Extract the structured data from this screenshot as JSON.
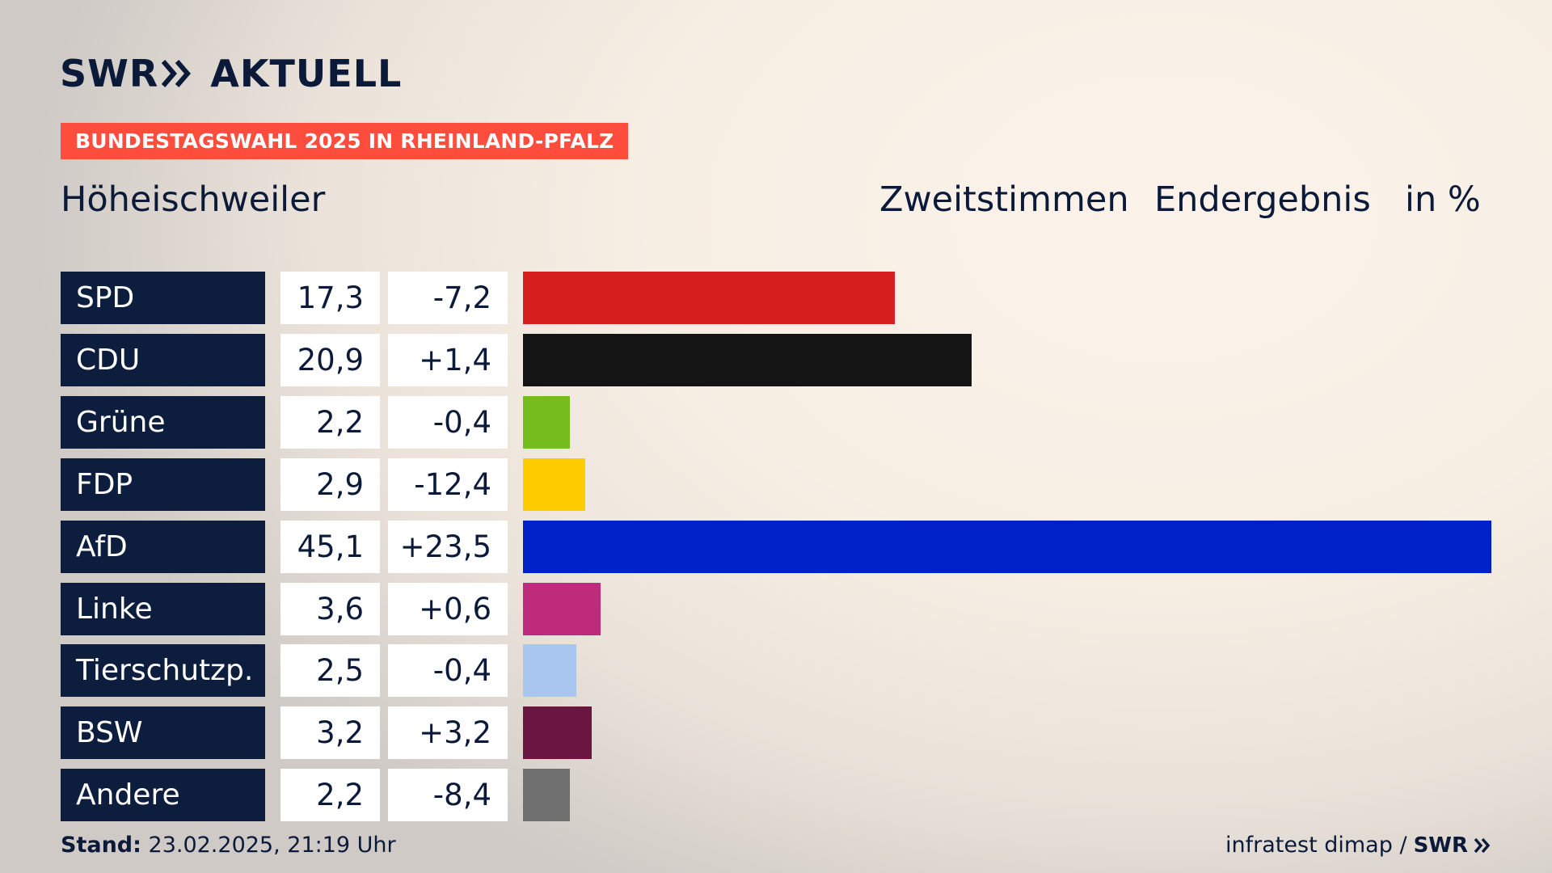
{
  "brand": {
    "swr": "SWR",
    "aktuell": "AKTUELL",
    "logo_icon": "double-chevron-icon"
  },
  "badge": "BUNDESTAGSWAHL 2025 IN RHEINLAND-PFALZ",
  "place": "Höheischweiler",
  "headers": {
    "vote": "Zweitstimmen",
    "result": "Endergebnis",
    "unit": "in %"
  },
  "colors": {
    "navy": "#0c1d3d",
    "badge": "#ff4d3d"
  },
  "chart_data": {
    "type": "bar",
    "orientation": "horizontal",
    "xlim": [
      0,
      45.1
    ],
    "categories": [
      "SPD",
      "CDU",
      "Grüne",
      "FDP",
      "AfD",
      "Linke",
      "Tierschutzp.",
      "BSW",
      "Andere"
    ],
    "values": [
      17.3,
      20.9,
      2.2,
      2.9,
      45.1,
      3.6,
      2.5,
      3.2,
      2.2
    ],
    "value_labels": [
      "17,3",
      "20,9",
      "2,2",
      "2,9",
      "45,1",
      "3,6",
      "2,5",
      "3,2",
      "2,2"
    ],
    "diff_labels": [
      "-7,2",
      "+1,4",
      "-0,4",
      "-12,4",
      "+23,5",
      "+0,6",
      "-0,4",
      "+3,2",
      "-8,4"
    ],
    "colors": [
      "#d71f1f",
      "#141414",
      "#74bd1c",
      "#ffcc00",
      "#0021c8",
      "#bd2b7a",
      "#a9c7ee",
      "#6a1640",
      "#707070"
    ]
  },
  "footer": {
    "stand_label": "Stand:",
    "stand_value": "23.02.2025, 21:19 Uhr",
    "source": "infratest dimap /",
    "source_brand": "SWR"
  }
}
